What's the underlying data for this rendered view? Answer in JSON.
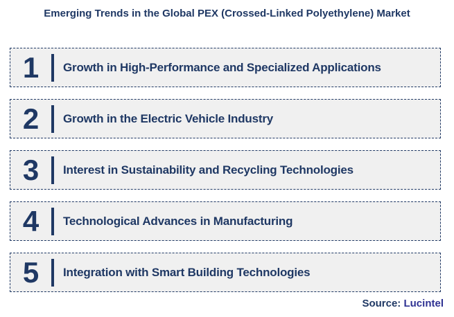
{
  "title": "Emerging Trends in the Global PEX (Crossed-Linked Polyethylene) Market",
  "items": [
    {
      "number": "1",
      "label": "Growth in High-Performance and Specialized Applications"
    },
    {
      "number": "2",
      "label": "Growth in the Electric Vehicle Industry"
    },
    {
      "number": "3",
      "label": "Interest in Sustainability and Recycling Technologies"
    },
    {
      "number": "4",
      "label": "Technological Advances in Manufacturing"
    },
    {
      "number": "5",
      "label": "Integration with Smart Building Technologies"
    }
  ],
  "source": {
    "label": "Source:",
    "value": "Lucintel"
  },
  "colors": {
    "navy": "#1F3864",
    "box_bg": "#F0F0F0",
    "source_value": "#2E3192"
  }
}
